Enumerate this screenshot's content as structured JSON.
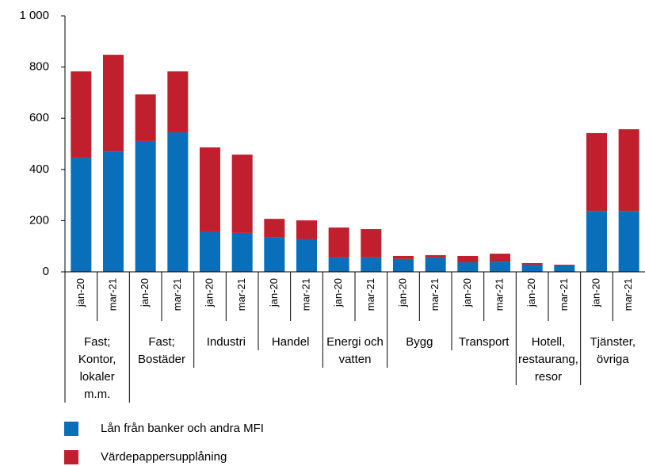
{
  "chart_data": {
    "type": "stacked_bar",
    "categories": [
      "jan-20",
      "mar-21",
      "jan-20",
      "mar-21",
      "jan-20",
      "mar-21",
      "jan-20",
      "mar-21",
      "jan-20",
      "mar-21",
      "jan-20",
      "mar-21",
      "jan-20",
      "mar-21",
      "jan-20",
      "mar-21",
      "jan-20",
      "mar-21"
    ],
    "groups": [
      [
        "Fast;",
        "Kontor,",
        "lokaler",
        "m.m."
      ],
      [
        "Fast;",
        "Bostäder"
      ],
      [
        "Industri"
      ],
      [
        "Handel"
      ],
      [
        "Energi och",
        "vatten"
      ],
      [
        "Bygg"
      ],
      [
        "Transport"
      ],
      [
        "Hotell,",
        "restaurang,",
        "resor"
      ],
      [
        "Tjänster,",
        "övriga"
      ]
    ],
    "series": [
      {
        "name": "Lån från banker och andra MFI",
        "color": "#0a6fba",
        "values": [
          446,
          470,
          511,
          545,
          155,
          152,
          136,
          127,
          56,
          56,
          50,
          56,
          37,
          40,
          28,
          25,
          238,
          238
        ]
      },
      {
        "name": "Värdepappersupplåning",
        "color": "#c0202e",
        "values": [
          337,
          378,
          182,
          238,
          331,
          306,
          71,
          74,
          117,
          111,
          12,
          9,
          25,
          31,
          6,
          3,
          304,
          319
        ]
      }
    ],
    "ylim": [
      0,
      1000
    ],
    "yticks": [
      0,
      200,
      400,
      600,
      800,
      {
        "value": 1000,
        "label": "1 000"
      }
    ],
    "grid": false
  }
}
